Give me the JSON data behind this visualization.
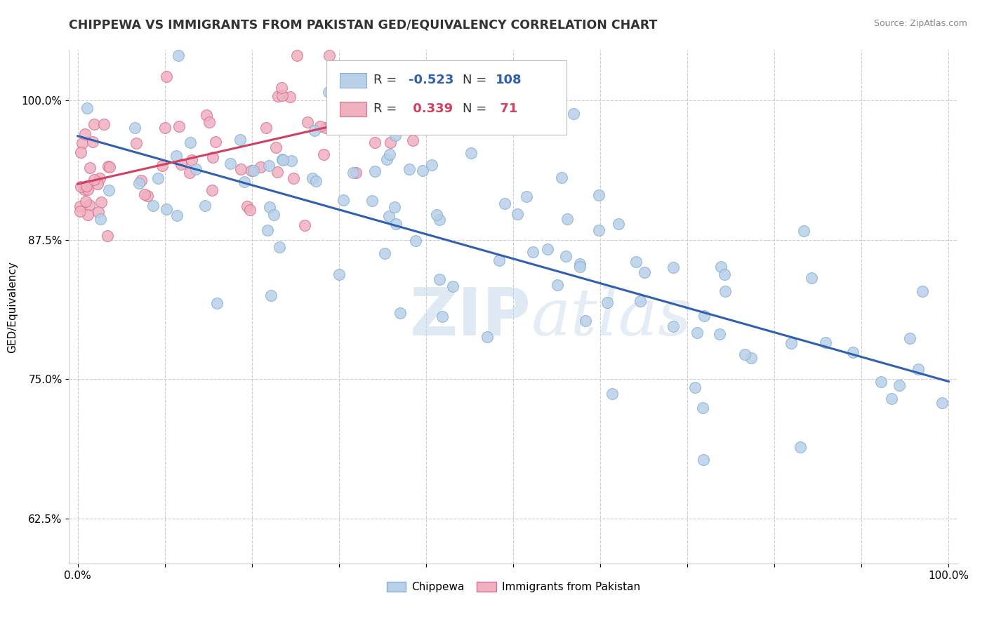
{
  "title": "CHIPPEWA VS IMMIGRANTS FROM PAKISTAN GED/EQUIVALENCY CORRELATION CHART",
  "source": "Source: ZipAtlas.com",
  "ylabel": "GED/Equivalency",
  "xlim": [
    -0.01,
    1.01
  ],
  "ylim": [
    0.585,
    1.045
  ],
  "yticks": [
    0.625,
    0.75,
    0.875,
    1.0
  ],
  "ytick_labels": [
    "62.5%",
    "75.0%",
    "87.5%",
    "100.0%"
  ],
  "xticks": [
    0.0,
    0.1,
    0.2,
    0.3,
    0.4,
    0.5,
    0.6,
    0.7,
    0.8,
    0.9,
    1.0
  ],
  "xtick_labels": [
    "0.0%",
    "",
    "",
    "",
    "",
    "",
    "",
    "",
    "",
    "",
    "100.0%"
  ],
  "series1_color": "#b8d0e8",
  "series1_edge": "#88b0d0",
  "series2_color": "#f0b0c0",
  "series2_edge": "#d87090",
  "trend1_color": "#3060b0",
  "trend2_color": "#d04060",
  "legend_R1": "-0.523",
  "legend_N1": "108",
  "legend_R2": "0.339",
  "legend_N2": "71",
  "background_color": "#ffffff",
  "grid_color": "#cccccc",
  "title_fontsize": 12.5,
  "label_fontsize": 11,
  "trend1_x0": 0.0,
  "trend1_y0": 0.968,
  "trend1_x1": 1.0,
  "trend1_y1": 0.748,
  "trend2_x0": 0.0,
  "trend2_y0": 0.925,
  "trend2_x1": 0.45,
  "trend2_y1": 1.005
}
